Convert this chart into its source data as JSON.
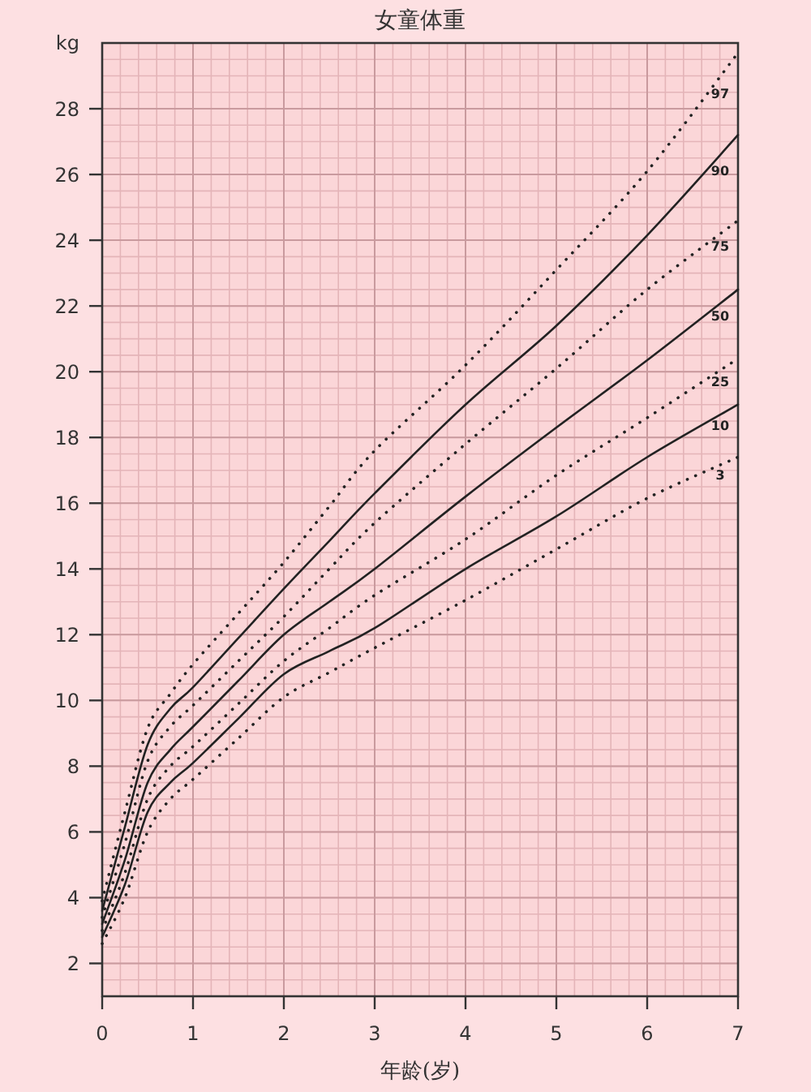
{
  "chart_data": {
    "type": "line",
    "title": "女童体重",
    "xlabel": "年龄(岁)",
    "ylabel": "kg",
    "xlim": [
      0,
      7
    ],
    "ylim": [
      1,
      30
    ],
    "xticks": [
      0,
      1,
      2,
      3,
      4,
      5,
      6,
      7
    ],
    "yticks": [
      2,
      4,
      6,
      8,
      10,
      12,
      14,
      16,
      18,
      20,
      22,
      24,
      26,
      28
    ],
    "grid": true,
    "marker": "none",
    "x": [
      0,
      0.25,
      0.5,
      0.75,
      1,
      1.5,
      2,
      2.5,
      3,
      4,
      5,
      6,
      7
    ],
    "series": [
      {
        "name": "97",
        "color": "#222222",
        "line_style": "dotted",
        "values": [
          3.9,
          6.6,
          9.15,
          10.2,
          11.1,
          12.65,
          14.2,
          15.9,
          17.6,
          20.2,
          23.1,
          26.1,
          29.7
        ]
      },
      {
        "name": "90",
        "color": "#222222",
        "line_style": "solid",
        "values": [
          3.6,
          6.15,
          8.65,
          9.75,
          10.4,
          11.9,
          13.4,
          14.85,
          16.3,
          19.0,
          21.4,
          24.15,
          27.2
        ]
      },
      {
        "name": "75",
        "color": "#222222",
        "line_style": "dotted",
        "values": [
          3.4,
          5.65,
          8.15,
          9.2,
          9.85,
          11.2,
          12.55,
          14.0,
          15.4,
          17.8,
          20.1,
          22.5,
          24.6
        ]
      },
      {
        "name": "50",
        "color": "#222222",
        "line_style": "solid",
        "values": [
          3.2,
          5.15,
          7.5,
          8.5,
          9.2,
          10.6,
          12.0,
          13.0,
          14.0,
          16.2,
          18.3,
          20.35,
          22.5
        ]
      },
      {
        "name": "25",
        "color": "#222222",
        "line_style": "dotted",
        "values": [
          3.0,
          4.75,
          7.0,
          8.0,
          8.6,
          9.9,
          11.2,
          12.2,
          13.2,
          14.9,
          16.85,
          18.6,
          20.4
        ]
      },
      {
        "name": "10",
        "color": "#222222",
        "line_style": "solid",
        "values": [
          2.8,
          4.4,
          6.6,
          7.5,
          8.1,
          9.45,
          10.8,
          11.5,
          12.2,
          14.0,
          15.6,
          17.4,
          19.0
        ]
      },
      {
        "name": "3",
        "color": "#222222",
        "line_style": "dotted",
        "values": [
          2.6,
          4.0,
          6.0,
          7.0,
          7.6,
          8.85,
          10.1,
          10.85,
          11.6,
          13.05,
          14.6,
          16.15,
          17.4
        ]
      }
    ]
  }
}
